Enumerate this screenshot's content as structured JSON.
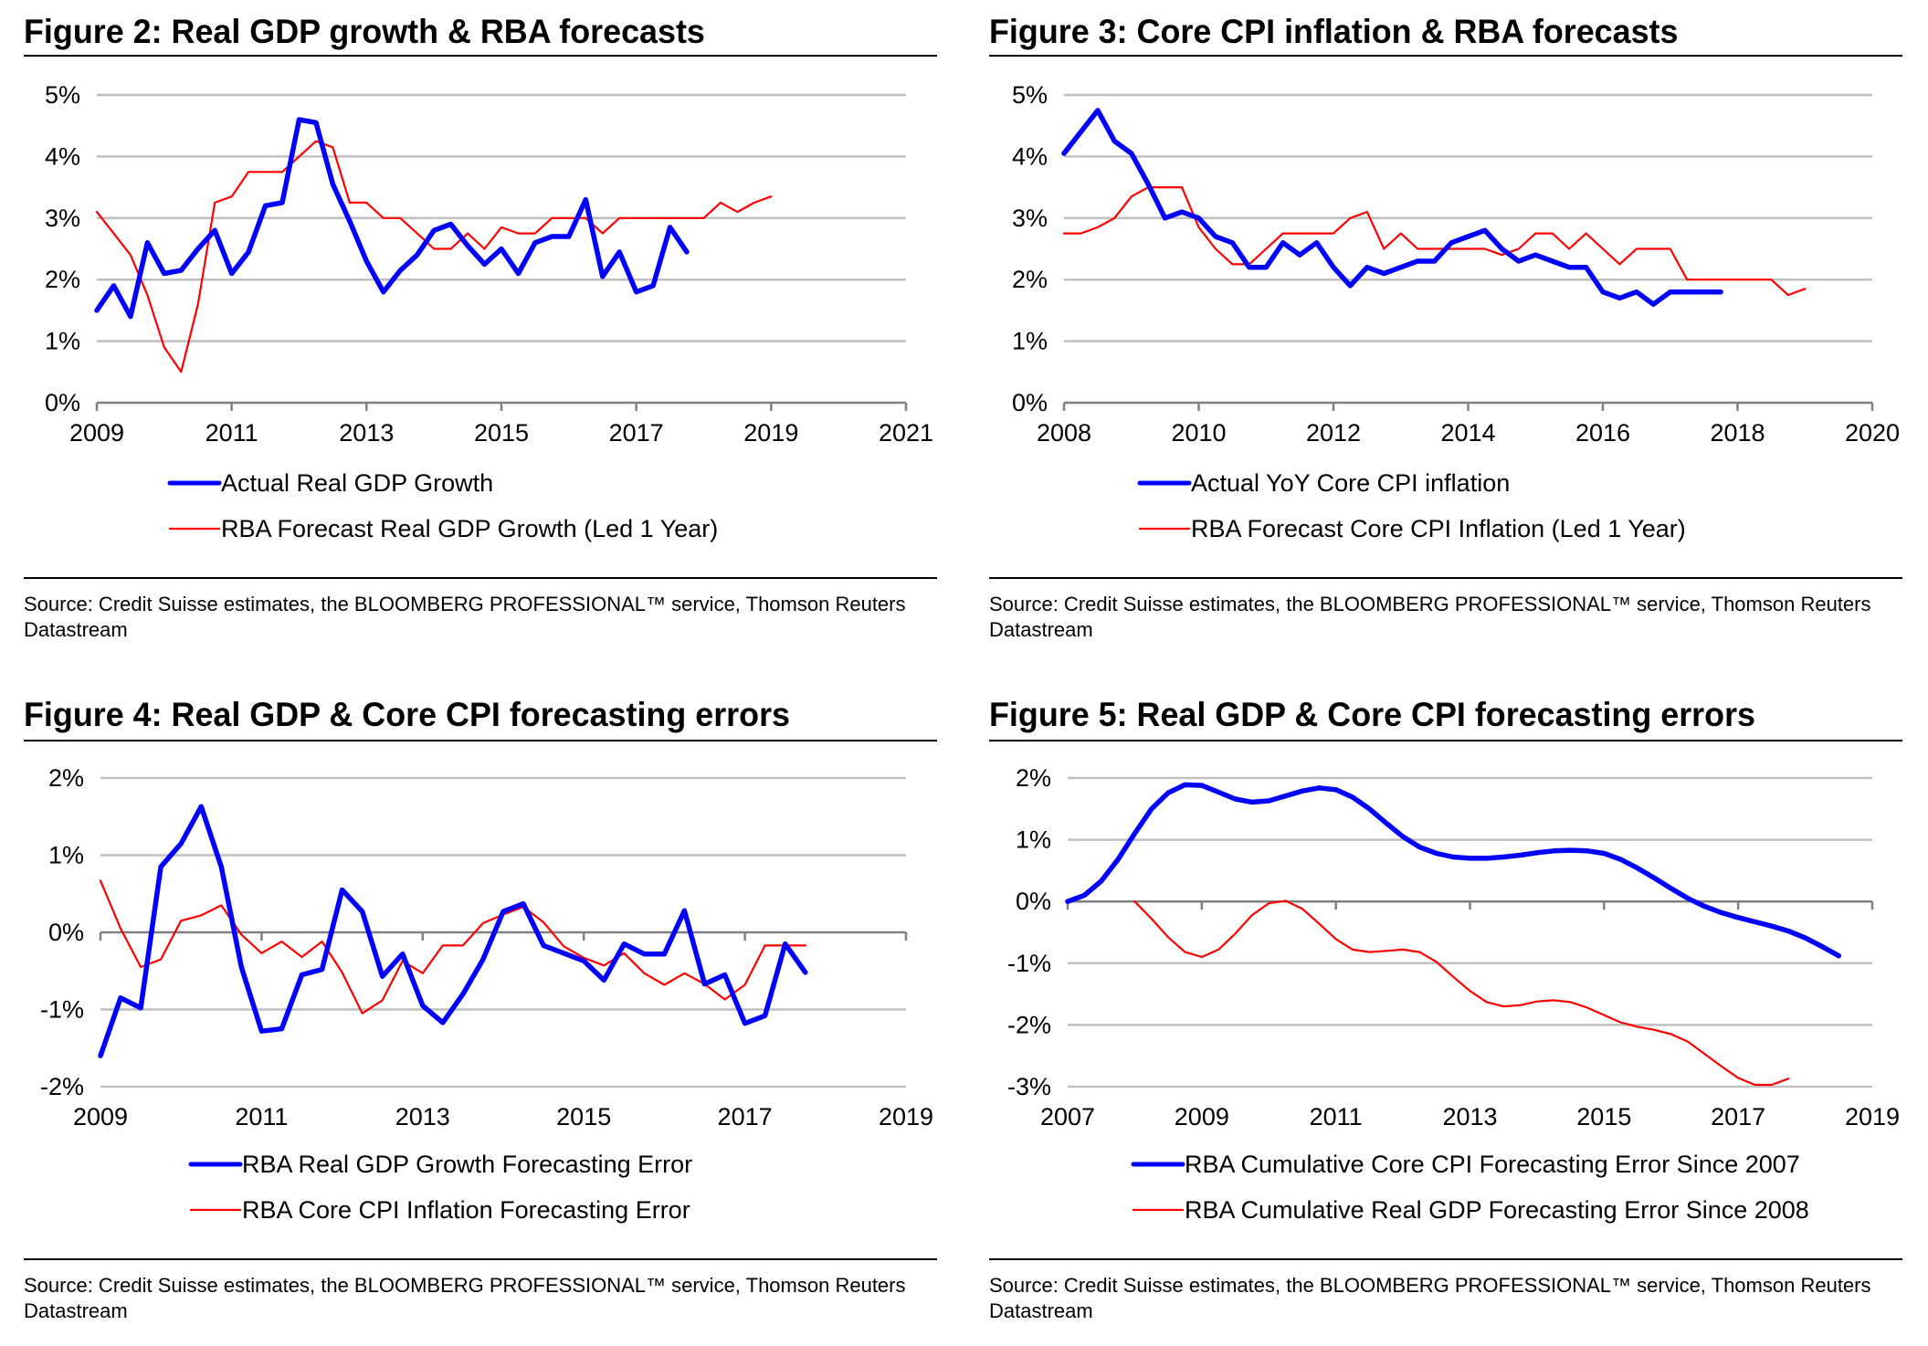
{
  "source_text": "Source: Credit Suisse estimates, the BLOOMBERG PROFESSIONAL™ service, Thomson Reuters Datastream",
  "colors": {
    "actual": "#0000ff",
    "forecast": "#ff0000",
    "grid": "#c0c0c0",
    "axis": "#808080"
  },
  "chart_data": [
    {
      "id": "fig2",
      "type": "line",
      "title": "Figure 2: Real GDP growth & RBA forecasts",
      "xlabel": "",
      "ylabel": "",
      "xlim": [
        2009,
        2021
      ],
      "ylim": [
        0,
        5
      ],
      "x_ticks": [
        2009,
        2011,
        2013,
        2015,
        2017,
        2019,
        2021
      ],
      "x_tick_labels": [
        "2009",
        "2011",
        "2013",
        "2015",
        "2017",
        "2019",
        "2021"
      ],
      "y_ticks": [
        0,
        1,
        2,
        3,
        4,
        5
      ],
      "y_tick_labels": [
        "0%",
        "1%",
        "2%",
        "3%",
        "4%",
        "5%"
      ],
      "zero_axis": 0,
      "grid": true,
      "legend_position": "bottom",
      "series": [
        {
          "name": "Actual Real GDP Growth",
          "color": "#0000ff",
          "weight": "thick",
          "x_start": 2009.0,
          "x_step": 0.25,
          "values": [
            1.5,
            1.9,
            1.4,
            2.6,
            2.1,
            2.15,
            2.5,
            2.8,
            2.1,
            2.45,
            3.2,
            3.25,
            4.6,
            4.55,
            3.55,
            2.95,
            2.3,
            1.8,
            2.15,
            2.4,
            2.8,
            2.9,
            2.55,
            2.25,
            2.5,
            2.1,
            2.6,
            2.7,
            2.7,
            3.3,
            2.05,
            2.45,
            1.8,
            1.9,
            2.85,
            2.45
          ]
        },
        {
          "name": "RBA Forecast Real GDP Growth (Led 1 Year)",
          "color": "#ff0000",
          "weight": "thin",
          "x_start": 2009.0,
          "x_step": 0.25,
          "values": [
            3.1,
            2.75,
            2.4,
            1.75,
            0.9,
            0.5,
            1.6,
            3.25,
            3.35,
            3.75,
            3.75,
            3.75,
            4.0,
            4.25,
            4.15,
            3.25,
            3.25,
            3.0,
            3.0,
            2.75,
            2.5,
            2.5,
            2.75,
            2.5,
            2.85,
            2.75,
            2.75,
            3.0,
            3.0,
            3.0,
            2.75,
            3.0,
            3.0,
            3.0,
            3.0,
            3.0,
            3.0,
            3.25,
            3.1,
            3.25,
            3.35
          ]
        }
      ]
    },
    {
      "id": "fig3",
      "type": "line",
      "title": "Figure 3: Core CPI inflation & RBA forecasts",
      "xlabel": "",
      "ylabel": "",
      "xlim": [
        2008,
        2020
      ],
      "ylim": [
        0,
        5
      ],
      "x_ticks": [
        2008,
        2010,
        2012,
        2014,
        2016,
        2018,
        2020
      ],
      "x_tick_labels": [
        "2008",
        "2010",
        "2012",
        "2014",
        "2016",
        "2018",
        "2020"
      ],
      "y_ticks": [
        0,
        1,
        2,
        3,
        4,
        5
      ],
      "y_tick_labels": [
        "0%",
        "1%",
        "2%",
        "3%",
        "4%",
        "5%"
      ],
      "zero_axis": 0,
      "grid": true,
      "legend_position": "bottom",
      "series": [
        {
          "name": "Actual YoY Core CPI inflation",
          "color": "#0000ff",
          "weight": "thick",
          "x_start": 2008.0,
          "x_step": 0.25,
          "values": [
            4.05,
            4.4,
            4.75,
            4.25,
            4.05,
            3.55,
            3.0,
            3.1,
            3.0,
            2.7,
            2.6,
            2.2,
            2.2,
            2.6,
            2.4,
            2.6,
            2.2,
            1.9,
            2.2,
            2.1,
            2.2,
            2.3,
            2.3,
            2.6,
            2.7,
            2.8,
            2.5,
            2.3,
            2.4,
            2.3,
            2.2,
            2.2,
            1.8,
            1.7,
            1.8,
            1.6,
            1.8,
            1.8,
            1.8,
            1.8
          ]
        },
        {
          "name": "RBA Forecast Core CPI Inflation (Led 1 Year)",
          "color": "#ff0000",
          "weight": "thin",
          "x_start": 2008.0,
          "x_step": 0.25,
          "values": [
            2.75,
            2.75,
            2.85,
            3.0,
            3.35,
            3.5,
            3.5,
            3.5,
            2.85,
            2.5,
            2.25,
            2.25,
            2.5,
            2.75,
            2.75,
            2.75,
            2.75,
            3.0,
            3.1,
            2.5,
            2.75,
            2.5,
            2.5,
            2.5,
            2.5,
            2.5,
            2.4,
            2.5,
            2.75,
            2.75,
            2.5,
            2.75,
            2.5,
            2.25,
            2.5,
            2.5,
            2.5,
            2.0,
            2.0,
            2.0,
            2.0,
            2.0,
            2.0,
            1.75,
            1.85
          ]
        }
      ]
    },
    {
      "id": "fig4",
      "type": "line",
      "title": "Figure 4: Real GDP & Core CPI forecasting errors",
      "xlabel": "",
      "ylabel": "",
      "xlim": [
        2009,
        2019
      ],
      "ylim": [
        -2,
        2
      ],
      "x_ticks": [
        2009,
        2011,
        2013,
        2015,
        2017,
        2019
      ],
      "x_tick_labels": [
        "2009",
        "2011",
        "2013",
        "2015",
        "2017",
        "2019"
      ],
      "y_ticks": [
        -2,
        -1,
        0,
        1,
        2
      ],
      "y_tick_labels": [
        "-2%",
        "-1%",
        "0%",
        "1%",
        "2%"
      ],
      "zero_axis": 0,
      "grid": true,
      "legend_position": "bottom",
      "series": [
        {
          "name": "RBA Real GDP Growth Forecasting Error",
          "color": "#0000ff",
          "weight": "thick",
          "x_start": 2009.0,
          "x_step": 0.25,
          "values": [
            -1.6,
            -0.85,
            -0.98,
            0.85,
            1.15,
            1.63,
            0.85,
            -0.45,
            -1.28,
            -1.25,
            -0.55,
            -0.48,
            0.55,
            0.27,
            -0.57,
            -0.28,
            -0.95,
            -1.17,
            -0.8,
            -0.35,
            0.27,
            0.37,
            -0.17,
            -0.27,
            -0.37,
            -0.62,
            -0.15,
            -0.28,
            -0.28,
            0.28,
            -0.67,
            -0.55,
            -1.18,
            -1.08,
            -0.15,
            -0.52
          ]
        },
        {
          "name": "RBA Core CPI Inflation Forecasting Error",
          "color": "#ff0000",
          "weight": "thin",
          "x_start": 2009.0,
          "x_step": 0.25,
          "values": [
            0.67,
            0.05,
            -0.45,
            -0.35,
            0.15,
            0.22,
            0.35,
            -0.03,
            -0.27,
            -0.12,
            -0.32,
            -0.12,
            -0.52,
            -1.05,
            -0.88,
            -0.37,
            -0.53,
            -0.17,
            -0.17,
            0.12,
            0.23,
            0.33,
            0.13,
            -0.18,
            -0.33,
            -0.43,
            -0.27,
            -0.53,
            -0.68,
            -0.53,
            -0.67,
            -0.87,
            -0.68,
            -0.17,
            -0.17,
            -0.17
          ]
        }
      ]
    },
    {
      "id": "fig5",
      "type": "line",
      "title": "Figure 5: Real GDP & Core CPI forecasting errors",
      "xlabel": "",
      "ylabel": "",
      "xlim": [
        2007,
        2019
      ],
      "ylim": [
        -3,
        2
      ],
      "x_ticks": [
        2007,
        2009,
        2011,
        2013,
        2015,
        2017,
        2019
      ],
      "x_tick_labels": [
        "2007",
        "2009",
        "2011",
        "2013",
        "2015",
        "2017",
        "2019"
      ],
      "y_ticks": [
        -3,
        -2,
        -1,
        0,
        1,
        2
      ],
      "y_tick_labels": [
        "-3%",
        "-2%",
        "-1%",
        "0%",
        "1%",
        "2%"
      ],
      "zero_axis": 0,
      "grid": true,
      "legend_position": "bottom",
      "series": [
        {
          "name": "RBA Cumulative Core CPI Forecasting Error Since 2007",
          "color": "#0000ff",
          "weight": "thick",
          "x_start": 2007.0,
          "x_step": 0.25,
          "values": [
            0.0,
            0.1,
            0.33,
            0.68,
            1.1,
            1.5,
            1.76,
            1.89,
            1.88,
            1.77,
            1.66,
            1.61,
            1.63,
            1.71,
            1.79,
            1.84,
            1.81,
            1.69,
            1.5,
            1.27,
            1.05,
            0.88,
            0.78,
            0.72,
            0.7,
            0.7,
            0.72,
            0.75,
            0.79,
            0.82,
            0.83,
            0.82,
            0.78,
            0.68,
            0.54,
            0.38,
            0.21,
            0.05,
            -0.08,
            -0.18,
            -0.26,
            -0.33,
            -0.4,
            -0.48,
            -0.59,
            -0.73,
            -0.88
          ]
        },
        {
          "name": "RBA Cumulative Real GDP Forecasting Error Since 2008",
          "color": "#ff0000",
          "weight": "thin",
          "x_start": 2008.0,
          "x_step": 0.25,
          "values": [
            0.0,
            -0.28,
            -0.58,
            -0.82,
            -0.9,
            -0.78,
            -0.52,
            -0.22,
            -0.03,
            0.01,
            -0.12,
            -0.36,
            -0.61,
            -0.78,
            -0.82,
            -0.8,
            -0.78,
            -0.82,
            -0.98,
            -1.22,
            -1.45,
            -1.63,
            -1.7,
            -1.68,
            -1.62,
            -1.6,
            -1.63,
            -1.72,
            -1.84,
            -1.96,
            -2.03,
            -2.08,
            -2.15,
            -2.27,
            -2.47,
            -2.67,
            -2.86,
            -2.97,
            -2.97,
            -2.87
          ]
        }
      ]
    }
  ]
}
